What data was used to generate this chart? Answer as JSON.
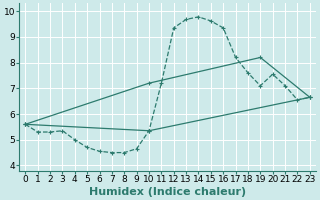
{
  "bg_color": "#ceeaea",
  "grid_color": "#ffffff",
  "line_color": "#2d7b6e",
  "xlabel": "Humidex (Indice chaleur)",
  "xlabel_fontsize": 8,
  "tick_fontsize": 6.5,
  "xlim": [
    -0.5,
    23.5
  ],
  "ylim": [
    3.8,
    10.3
  ],
  "yticks": [
    4,
    5,
    6,
    7,
    8,
    9,
    10
  ],
  "xticks": [
    0,
    1,
    2,
    3,
    4,
    5,
    6,
    7,
    8,
    9,
    10,
    11,
    12,
    13,
    14,
    15,
    16,
    17,
    18,
    19,
    20,
    21,
    22,
    23
  ],
  "curve1_x": [
    0,
    1,
    2,
    3,
    4,
    5,
    6,
    7,
    8,
    9,
    10,
    11,
    12,
    13,
    14,
    15,
    16,
    17,
    18,
    19,
    20,
    21,
    22,
    23
  ],
  "curve1_y": [
    5.6,
    5.3,
    5.3,
    5.35,
    5.0,
    4.7,
    4.55,
    4.5,
    4.5,
    4.65,
    5.35,
    7.2,
    9.35,
    9.68,
    9.78,
    9.62,
    9.35,
    8.2,
    7.6,
    7.1,
    7.55,
    7.1,
    6.55,
    6.65
  ],
  "curve2_x": [
    0,
    10,
    19,
    23
  ],
  "curve2_y": [
    5.6,
    7.2,
    8.2,
    6.65
  ],
  "curve3_x": [
    0,
    10,
    23
  ],
  "curve3_y": [
    5.6,
    5.35,
    6.65
  ]
}
